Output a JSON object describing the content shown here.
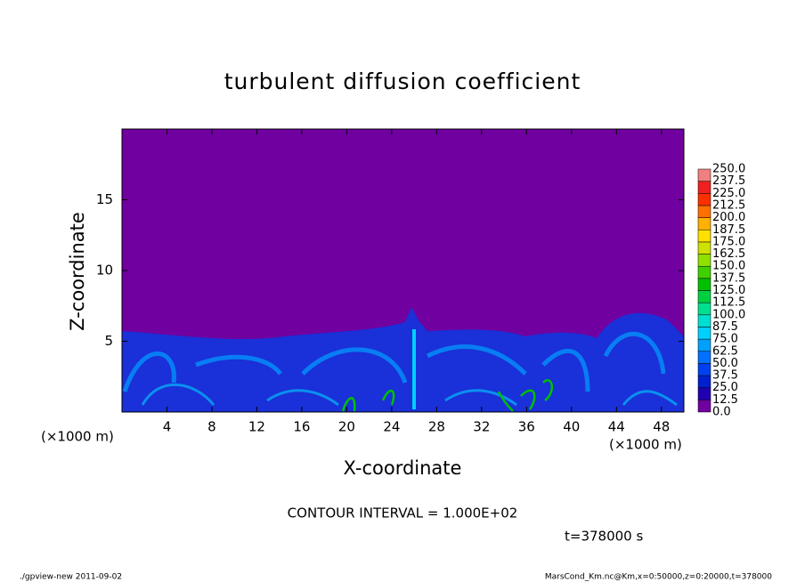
{
  "chart_data": {
    "type": "heatmap",
    "title": "turbulent diffusion coefficient",
    "xlabel": "X-coordinate",
    "ylabel": "Z-coordinate",
    "x_unit": "(×1000 m)",
    "xlim": [
      0,
      50
    ],
    "ylim": [
      0,
      20
    ],
    "xticks": [
      4,
      8,
      12,
      16,
      20,
      24,
      28,
      32,
      36,
      40,
      44,
      48
    ],
    "yticks": [
      5,
      10,
      15
    ],
    "contour_note": "CONTOUR INTERVAL = 1.000E+02",
    "time_note": "t=378000 s",
    "colorbar": {
      "ticks": [
        {
          "value": 0,
          "label": "0.0"
        },
        {
          "value": 12.5,
          "label": "12.5"
        },
        {
          "value": 25,
          "label": "25.0"
        },
        {
          "value": 37.5,
          "label": "37.5"
        },
        {
          "value": 50,
          "label": "50.0"
        },
        {
          "value": 62.5,
          "label": "62.5"
        },
        {
          "value": 75,
          "label": "75.0"
        },
        {
          "value": 87.5,
          "label": "87.5"
        },
        {
          "value": 100,
          "label": "100.0"
        },
        {
          "value": 112.5,
          "label": "112.5"
        },
        {
          "value": 125,
          "label": "125.0"
        },
        {
          "value": 137.5,
          "label": "137.5"
        },
        {
          "value": 150,
          "label": "150.0"
        },
        {
          "value": 162.5,
          "label": "162.5"
        },
        {
          "value": 175,
          "label": "175.0"
        },
        {
          "value": 187.5,
          "label": "187.5"
        },
        {
          "value": 200,
          "label": "200.0"
        },
        {
          "value": 212.5,
          "label": "212.5"
        },
        {
          "value": 225,
          "label": "225.0"
        },
        {
          "value": 237.5,
          "label": "237.5"
        },
        {
          "value": 250,
          "label": "250.0"
        }
      ],
      "colors": [
        "#7000a0",
        "#2000b0",
        "#0020d0",
        "#0040f0",
        "#0070ff",
        "#00a0ff",
        "#00d0ff",
        "#00e0d0",
        "#00e090",
        "#00d040",
        "#00c000",
        "#40d000",
        "#90e000",
        "#d0e000",
        "#ffe000",
        "#ffb000",
        "#ff7000",
        "#ff3000",
        "#f02020",
        "#f08080"
      ]
    }
  },
  "footer": {
    "left": "./gpview-new  2011-09-02",
    "right": "MarsCond_Km.nc@Km,x=0:50000,z=0:20000,t=378000"
  }
}
